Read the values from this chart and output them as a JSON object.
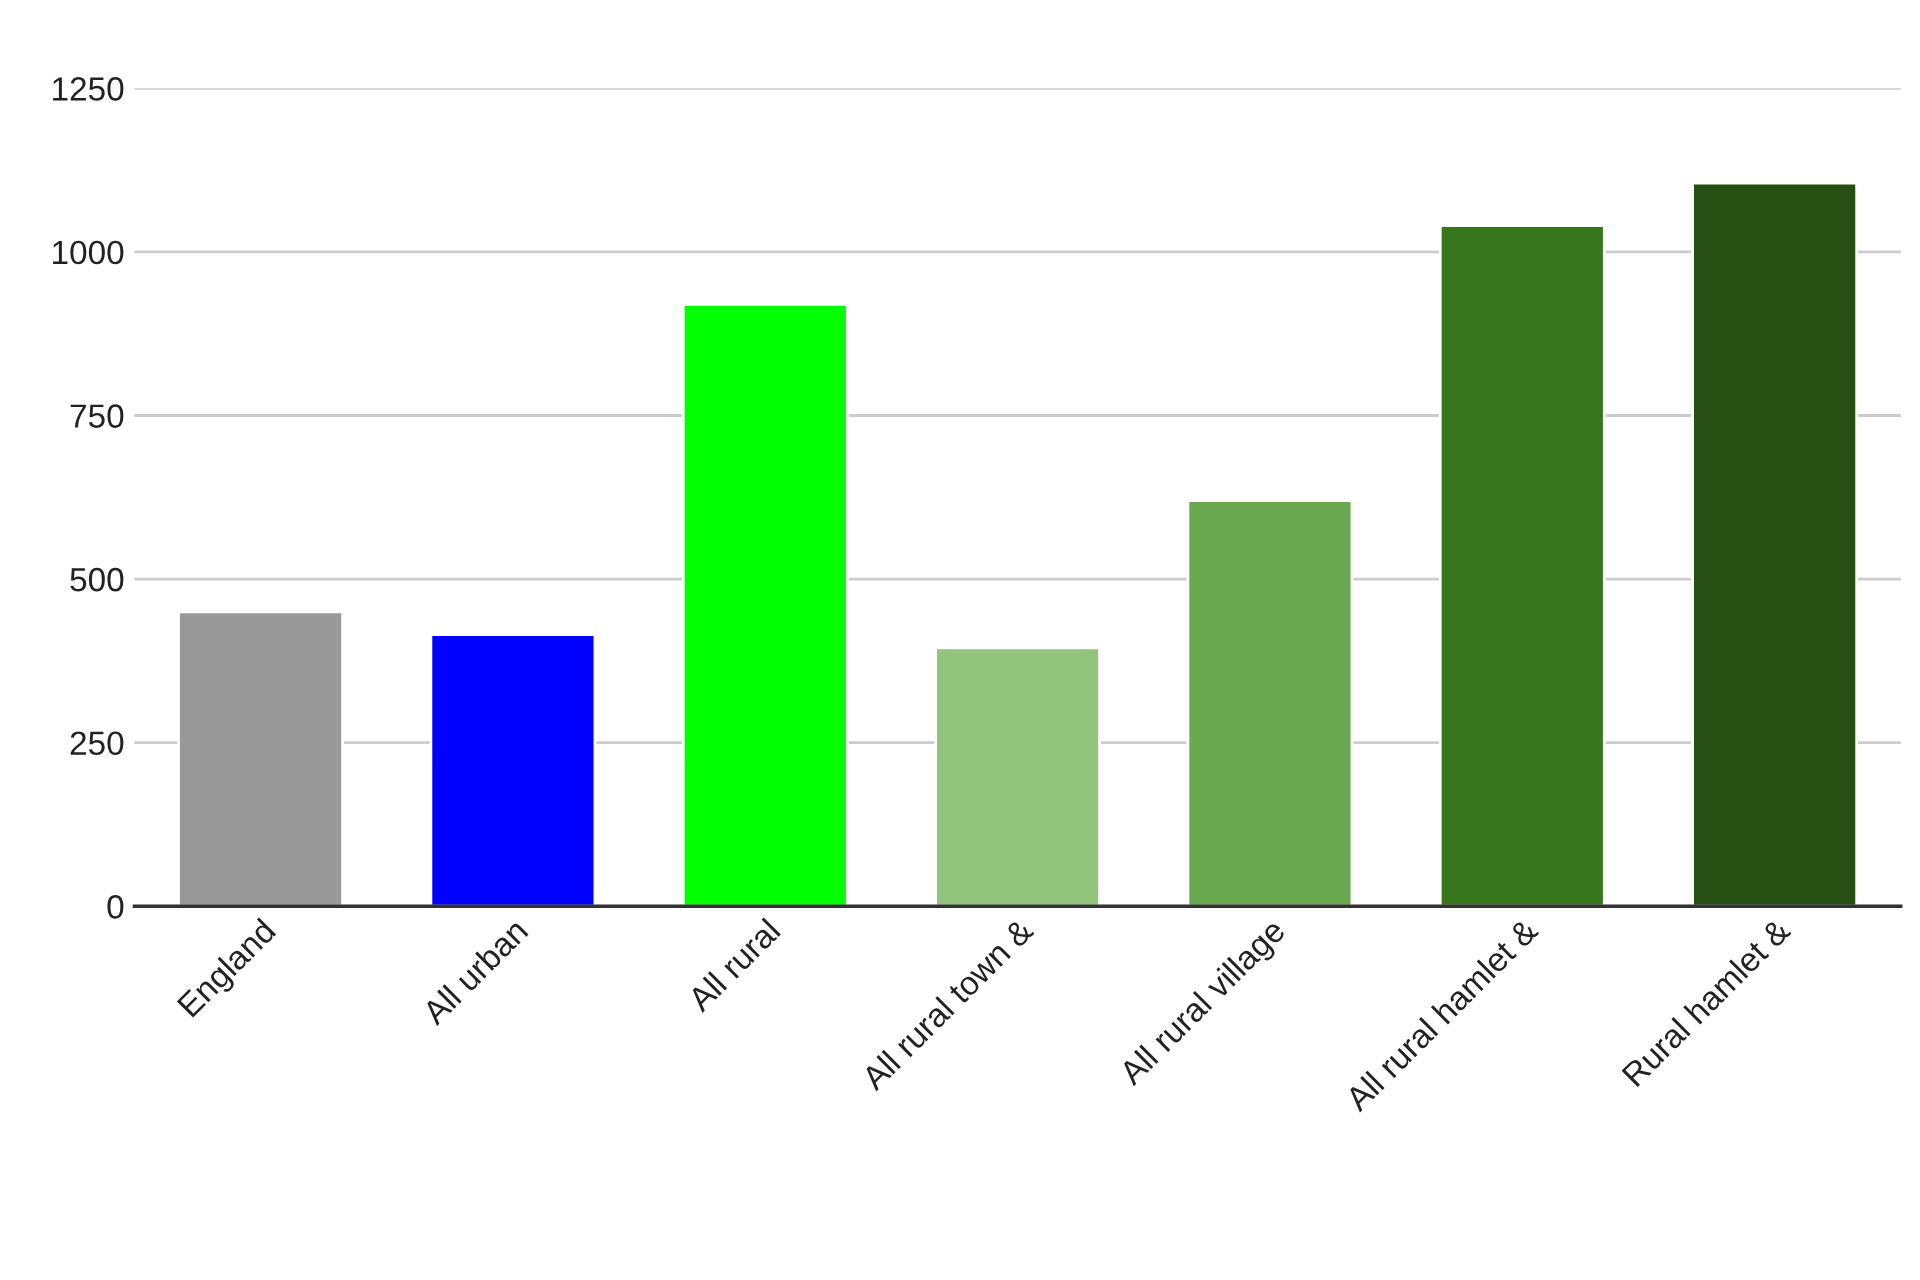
{
  "chart_data": {
    "type": "bar",
    "categories": [
      "England",
      "All urban",
      "All rural",
      "All rural town &",
      "All rural village",
      "All rural hamlet &",
      "Rural hamlet &"
    ],
    "values": [
      450,
      415,
      920,
      395,
      620,
      1040,
      1105
    ],
    "colors": [
      "#999999",
      "#0000ff",
      "#00ff00",
      "#93c47d",
      "#6aa84f",
      "#38761d",
      "#274e13"
    ],
    "ylim": [
      0,
      1250
    ],
    "yticks": [
      0,
      250,
      500,
      750,
      1000,
      1250
    ],
    "grid": "y"
  }
}
